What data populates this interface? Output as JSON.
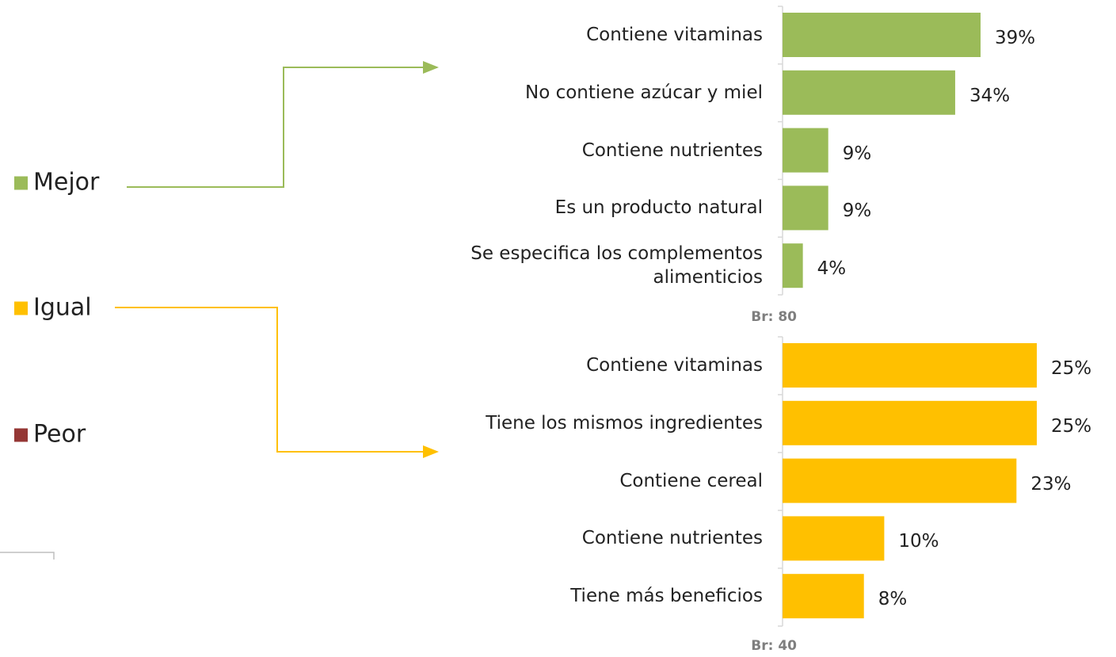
{
  "legend": [
    {
      "name": "Mejor",
      "color": "#9bbb59"
    },
    {
      "name": "Igual",
      "color": "#ffc000"
    },
    {
      "name": "Peor",
      "color": "#953735"
    }
  ],
  "chart_data": [
    {
      "type": "bar",
      "orientation": "horizontal",
      "color": "#9bbb59",
      "note": "Br: 80",
      "categories": [
        "Contiene vitaminas",
        "No contiene azúcar y miel",
        "Contiene nutrientes",
        "Es un producto natural",
        "Se especifica los complementos alimenticios"
      ],
      "values": [
        39,
        34,
        9,
        9,
        4
      ],
      "value_labels": [
        "39%",
        "34%",
        "9%",
        "9%",
        "4%"
      ]
    },
    {
      "type": "bar",
      "orientation": "horizontal",
      "color": "#ffc000",
      "note": "Br: 40",
      "categories": [
        "Contiene vitaminas",
        "Tiene los mismos ingredientes",
        "Contiene cereal",
        "Contiene nutrientes",
        "Tiene más beneficios"
      ],
      "values": [
        25,
        25,
        23,
        10,
        8
      ],
      "value_labels": [
        "25%",
        "25%",
        "23%",
        "10%",
        "8%"
      ]
    }
  ]
}
